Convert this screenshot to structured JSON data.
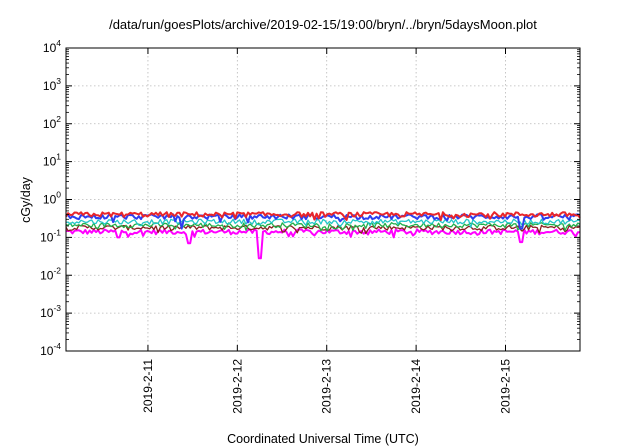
{
  "chart_data": {
    "type": "line",
    "title": "/data/run/goesPlots/archive/2019-02-15/19:00/bryn/../bryn/5daysMoon.plot",
    "xlabel": "Coordinated Universal Time (UTC)",
    "ylabel": "cGy/day",
    "yscale": "log",
    "ylim": [
      0.0001,
      10000
    ],
    "y_ticks": [
      {
        "base": "10",
        "exp": "-4"
      },
      {
        "base": "10",
        "exp": "-3"
      },
      {
        "base": "10",
        "exp": "-2"
      },
      {
        "base": "10",
        "exp": "-1"
      },
      {
        "base": "10",
        "exp": "0"
      },
      {
        "base": "10",
        "exp": "1"
      },
      {
        "base": "10",
        "exp": "2"
      },
      {
        "base": "10",
        "exp": "3"
      },
      {
        "base": "10",
        "exp": "4"
      }
    ],
    "xlim": [
      "2019-02-10T02:00",
      "2019-02-15T20:00"
    ],
    "x_ticks": [
      "2019-2-11",
      "2019-2-12",
      "2019-2-13",
      "2019-2-14",
      "2019-2-15"
    ],
    "grid": true,
    "series": [
      {
        "color": "#e8262b",
        "level": 0.4,
        "dips": [],
        "linewidth": 2
      },
      {
        "color": "#2d3ef0",
        "level": 0.35,
        "dips": [
          [
            "2019-02-11T09:00",
            0.17
          ],
          [
            "2019-02-15T04:00",
            0.17
          ]
        ],
        "linewidth": 2
      },
      {
        "color": "#22c6c8",
        "level": 0.26,
        "dips": [],
        "linewidth": 1.3
      },
      {
        "color": "#22b04a",
        "level": 0.21,
        "dips": [],
        "linewidth": 1.3
      },
      {
        "color": "#8a1e1e",
        "level": 0.18,
        "dips": [],
        "linewidth": 1.3
      },
      {
        "color": "#ff00ff",
        "level": 0.14,
        "dips": [
          [
            "2019-02-10T16:00",
            0.1
          ],
          [
            "2019-02-11T11:00",
            0.07
          ],
          [
            "2019-02-12T06:00",
            0.028
          ],
          [
            "2019-02-15T04:00",
            0.075
          ]
        ],
        "linewidth": 2
      }
    ]
  }
}
